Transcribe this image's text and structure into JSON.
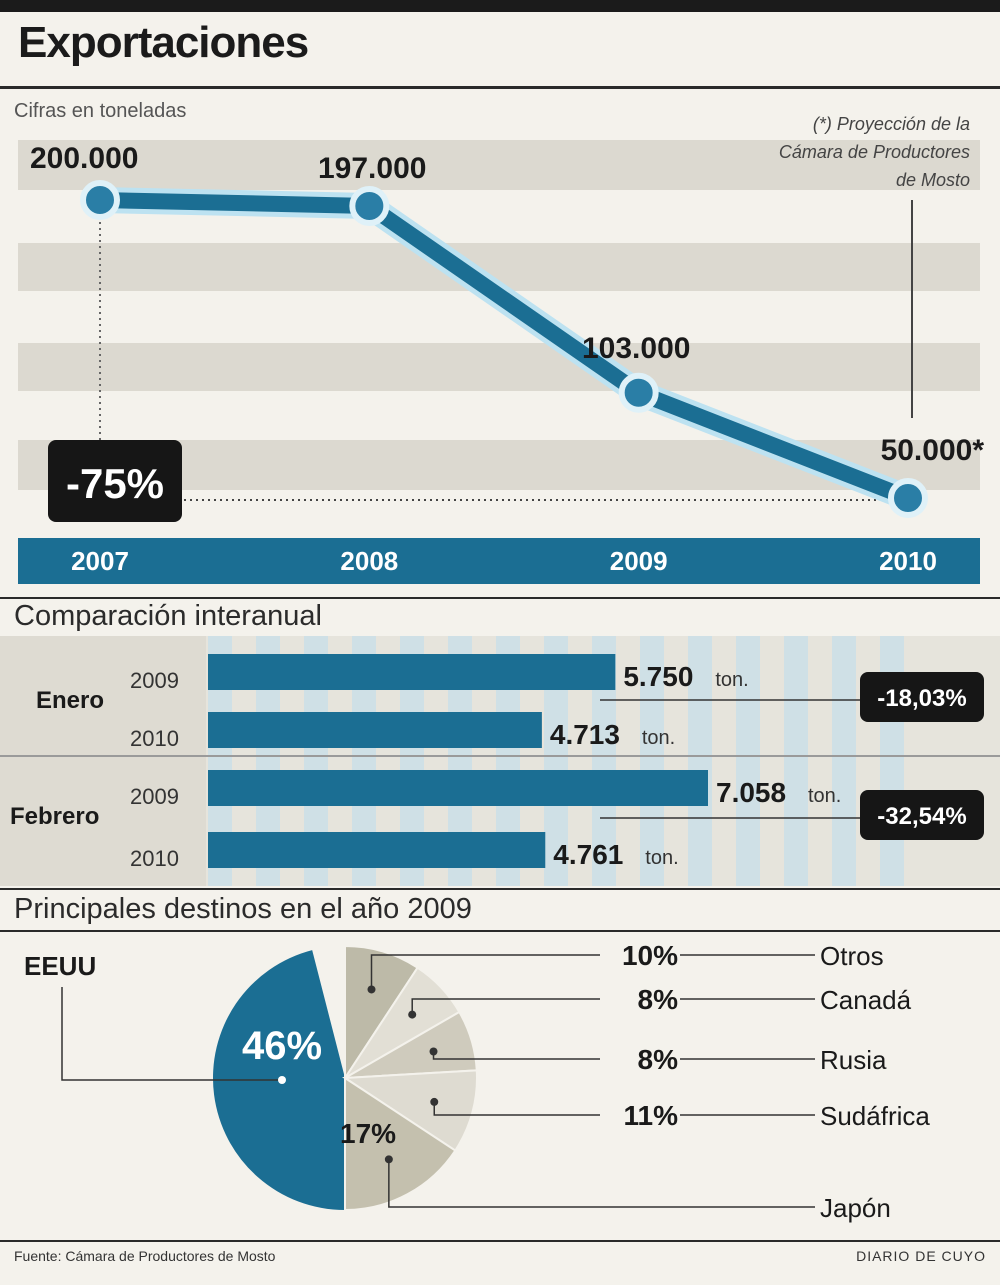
{
  "header": {
    "title": "Exportaciones"
  },
  "chart_data": [
    {
      "type": "line",
      "subtitle": "Cifras en toneladas",
      "x": [
        "2007",
        "2008",
        "2009",
        "2010"
      ],
      "series": [
        {
          "values": [
            200000,
            197000,
            103000,
            50000
          ]
        }
      ],
      "data_labels": [
        "200.000",
        "197.000",
        "103.000",
        "50.000*"
      ],
      "ylim": [
        40000,
        210000
      ],
      "note": "(*) Proyección de la Cámara de Productores de Mosto",
      "annotation": "-75%",
      "colors": {
        "line": "#1b6e93",
        "marker_fill": "#2a7ea6",
        "axis_band": "#1b6e93",
        "grid_band": "#dcd9d0"
      }
    },
    {
      "type": "bar",
      "title": "Comparación interanual",
      "groups": [
        {
          "label": "Enero",
          "change": "-18,03%",
          "bars": [
            {
              "year": "2009",
              "value": 5750,
              "label": "5.750",
              "unit": "ton."
            },
            {
              "year": "2010",
              "value": 4713,
              "label": "4.713",
              "unit": "ton."
            }
          ]
        },
        {
          "label": "Febrero",
          "change": "-32,54%",
          "bars": [
            {
              "year": "2009",
              "value": 7058,
              "label": "7.058",
              "unit": "ton."
            },
            {
              "year": "2010",
              "value": 4761,
              "label": "4.761",
              "unit": "ton."
            }
          ]
        }
      ],
      "xlim": [
        0,
        7058
      ],
      "colors": {
        "bar": "#1b6e93",
        "stripe": "#c9dfe9"
      }
    },
    {
      "type": "pie",
      "title": "Principales destinos en el año 2009",
      "slices": [
        {
          "label": "EEUU",
          "value": 46,
          "text": "46%",
          "color": "#1b6e93"
        },
        {
          "label": "Otros",
          "value": 10,
          "text": "10%",
          "color": "#bdbaa8"
        },
        {
          "label": "Canadá",
          "value": 8,
          "text": "8%",
          "color": "#e2dfd5"
        },
        {
          "label": "Rusia",
          "value": 8,
          "text": "8%",
          "color": "#cfcbbd"
        },
        {
          "label": "Sudáfrica",
          "value": 11,
          "text": "11%",
          "color": "#dedbd1"
        },
        {
          "label": "Japón",
          "value": 17,
          "text": "17%",
          "color": "#c4c0ae"
        }
      ]
    }
  ],
  "footer": {
    "source": "Fuente: Cámara de Productores de Mosto",
    "credit": "DIARIO DE CUYO"
  }
}
